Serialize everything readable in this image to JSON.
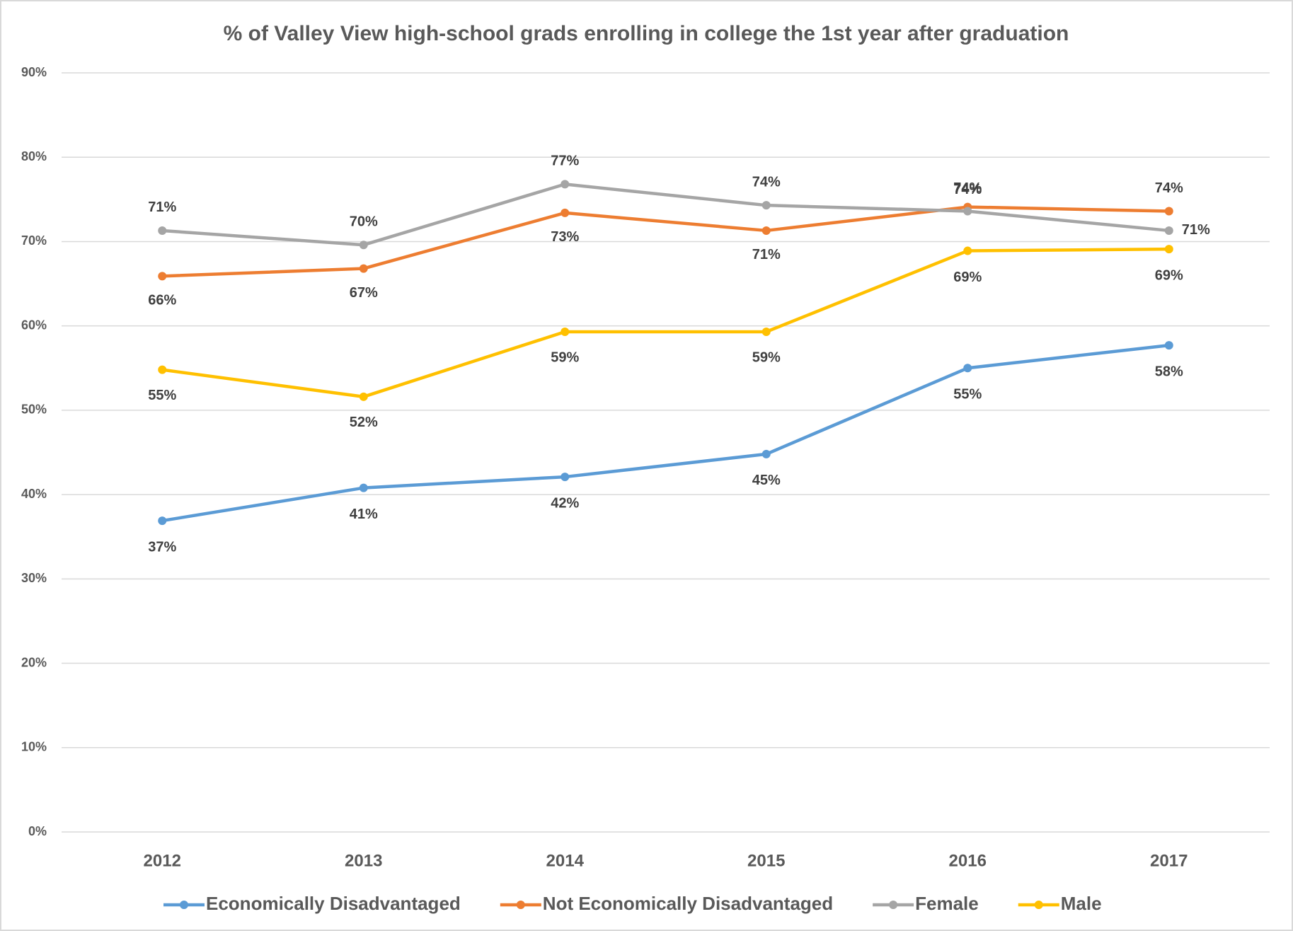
{
  "chart_data": {
    "type": "line",
    "title": "% of Valley View high-school grads enrolling in college the 1st year after graduation",
    "categories": [
      "2012",
      "2013",
      "2014",
      "2015",
      "2016",
      "2017"
    ],
    "series": [
      {
        "name": "Economically Disadvantaged",
        "color": "#5b9bd5",
        "values": [
          36.9,
          40.8,
          42.1,
          44.8,
          55.0,
          57.7
        ],
        "value_labels": [
          "37%",
          "41%",
          "42%",
          "45%",
          "55%",
          "58%"
        ]
      },
      {
        "name": "Not Economically Disadvantaged",
        "color": "#ed7d31",
        "values": [
          65.9,
          66.8,
          73.4,
          71.3,
          74.1,
          73.6
        ],
        "value_labels": [
          "66%",
          "67%",
          "73%",
          "71%",
          "74%",
          "74%"
        ]
      },
      {
        "name": "Female",
        "color": "#a5a5a5",
        "values": [
          71.3,
          69.6,
          76.8,
          74.3,
          73.6,
          71.3
        ],
        "value_labels": [
          "71%",
          "70%",
          "77%",
          "74%",
          "74%",
          "71%"
        ]
      },
      {
        "name": "Male",
        "color": "#ffc000",
        "values": [
          54.8,
          51.6,
          59.3,
          59.3,
          68.9,
          69.1
        ],
        "value_labels": [
          "55%",
          "52%",
          "59%",
          "59%",
          "69%",
          "69%"
        ]
      }
    ],
    "ylim": [
      0,
      90
    ],
    "yticks": [
      {
        "value": 0,
        "label": "0%"
      },
      {
        "value": 10,
        "label": "10%"
      },
      {
        "value": 20,
        "label": "20%"
      },
      {
        "value": 30,
        "label": "30%"
      },
      {
        "value": 40,
        "label": "40%"
      },
      {
        "value": 50,
        "label": "50%"
      },
      {
        "value": 60,
        "label": "60%"
      },
      {
        "value": 70,
        "label": "70%"
      },
      {
        "value": 80,
        "label": "80%"
      },
      {
        "value": 90,
        "label": "90%"
      }
    ],
    "grid": true,
    "legend": "bottom"
  }
}
